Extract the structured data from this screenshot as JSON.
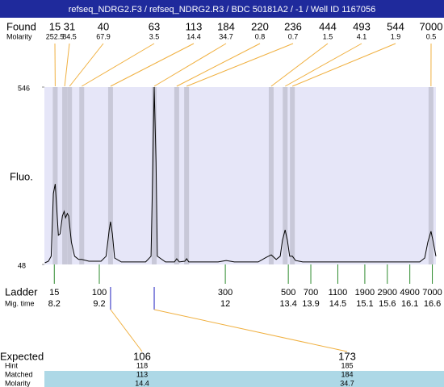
{
  "chart_data": {
    "type": "electropherogram",
    "title": "refseq_NDRG2.F3 / refseq_NDRG2.R3 / BDC 50181A2 / -1 / Well ID 1167056",
    "ylabel": "Fluo.",
    "ylim": [
      48,
      546
    ],
    "yticks": [
      48,
      546
    ],
    "xlim": [
      7.98,
      16.68
    ],
    "plot_color": "#e6e6f8",
    "band_color": "#c8c8d8",
    "found": {
      "label": "Found",
      "molarity_label": "Molarity",
      "sizes": [
        15,
        31,
        40,
        63,
        113,
        184,
        220,
        236,
        444,
        493,
        544,
        7000
      ],
      "molarity": [
        252.5,
        84.5,
        67.9,
        3.5,
        14.4,
        34.7,
        0.8,
        0.7,
        1.5,
        4.1,
        1.9,
        0.5
      ],
      "times": [
        8.22,
        8.43,
        8.54,
        8.81,
        9.45,
        10.42,
        10.92,
        11.14,
        13.02,
        13.33,
        13.49,
        16.57
      ],
      "line_color": "#f0b040"
    },
    "ladder": {
      "label": "Ladder",
      "time_label": "Mig. time",
      "sizes": [
        15,
        100,
        300,
        500,
        700,
        1100,
        1900,
        2900,
        4900,
        7000
      ],
      "times": [
        8.2,
        9.2,
        12,
        13.4,
        13.9,
        14.5,
        15.1,
        15.6,
        16.1,
        16.6
      ],
      "color": "#2e8b2e"
    },
    "expected": {
      "row_labels": [
        "Expected",
        "Hint",
        "Matched",
        "Molarity"
      ],
      "expected": [
        106,
        173
      ],
      "hint": [
        118,
        185
      ],
      "matched": [
        113,
        184
      ],
      "molarity": [
        14.4,
        34.7
      ],
      "highlight_color": "#add8e6"
    },
    "trace": {
      "color": "#000000",
      "x": [
        7.99,
        8.07,
        8.13,
        8.18,
        8.22,
        8.25,
        8.29,
        8.33,
        8.38,
        8.42,
        8.45,
        8.49,
        8.52,
        8.58,
        8.65,
        8.74,
        8.81,
        8.97,
        9.24,
        9.35,
        9.42,
        9.45,
        9.49,
        9.54,
        9.69,
        10.23,
        10.35,
        10.39,
        10.42,
        10.46,
        10.49,
        10.67,
        10.87,
        10.92,
        10.98,
        11.1,
        11.14,
        11.19,
        11.84,
        12.02,
        12.2,
        12.73,
        12.91,
        13.02,
        13.13,
        13.22,
        13.27,
        13.33,
        13.38,
        13.43,
        13.49,
        13.56,
        13.72,
        16.32,
        16.43,
        16.5,
        16.57,
        16.62,
        16.68
      ],
      "values": [
        52.5,
        57,
        71,
        247,
        274,
        213,
        130,
        134,
        184,
        197,
        179,
        191,
        184,
        111,
        71,
        62,
        62,
        57,
        57,
        71,
        145,
        168,
        134,
        66,
        55,
        55,
        71,
        335,
        546,
        335,
        71,
        55,
        55,
        64,
        55,
        57,
        64,
        55,
        55,
        59,
        55,
        55,
        68,
        75,
        62,
        71,
        116,
        145,
        116,
        71,
        71,
        59,
        55,
        55,
        66,
        111,
        141,
        111,
        71
      ]
    }
  }
}
